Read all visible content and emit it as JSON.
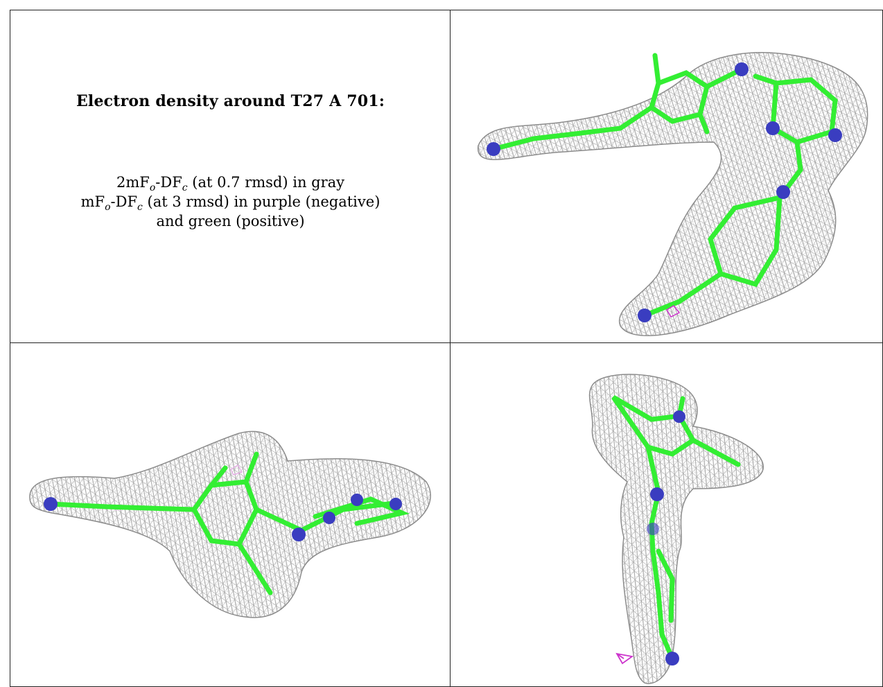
{
  "figure": {
    "title": "Electron density around T27 A 701:",
    "legend": {
      "line1": {
        "pre": "2mF",
        "s1": "o",
        "mid": "-DF",
        "s2": "c",
        "post": " (at 0.7 rmsd) in gray"
      },
      "line2": {
        "pre": "mF",
        "s1": "o",
        "mid": "-DF",
        "s2": "c",
        "post": " (at 3 rmsd) in purple (negative)"
      },
      "line3": "and green (positive)"
    }
  },
  "colors": {
    "mesh": "#9a9a9a",
    "carbon_bond": "#33ee33",
    "nitrogen_atom": "#3a3dc0",
    "negative_density": "#cc33cc",
    "border": "#222222"
  },
  "panels": [
    {
      "id": "view-1",
      "content": "ligand-density-view"
    },
    {
      "id": "view-2",
      "content": "ligand-density-view"
    },
    {
      "id": "view-3",
      "content": "ligand-density-view"
    }
  ]
}
